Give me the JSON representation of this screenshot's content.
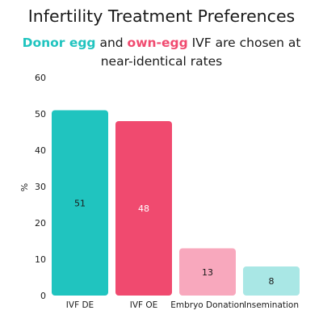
{
  "colors": {
    "accent1": "#20c4bf",
    "accent2": "#f04a6f",
    "bars": [
      "#20c4bf",
      "#f04a6f",
      "#f8a8bd",
      "#a9e7e5"
    ],
    "label_colors": [
      "#1a1a1a",
      "#ffffff",
      "#1a1a1a",
      "#1a1a1a"
    ]
  },
  "chart_data": {
    "type": "bar",
    "title": "Infertility Treatment Preferences",
    "subtitle": {
      "part1": "Donor egg",
      "part2": " and ",
      "part3": "own-egg",
      "part4": " IVF are chosen at",
      "line2": "near-identical rates"
    },
    "categories": [
      "IVF DE",
      "IVF OE",
      "Embryo Donation",
      "Insemination"
    ],
    "values": [
      51,
      48,
      13,
      8
    ],
    "data_labels": [
      "51",
      "48",
      "13",
      "8"
    ],
    "ylabel": "%",
    "xlabel": "",
    "ylim": [
      0,
      60
    ],
    "yticks": [
      0,
      10,
      20,
      30,
      40,
      50,
      60
    ],
    "grid": false,
    "legend": "none"
  }
}
